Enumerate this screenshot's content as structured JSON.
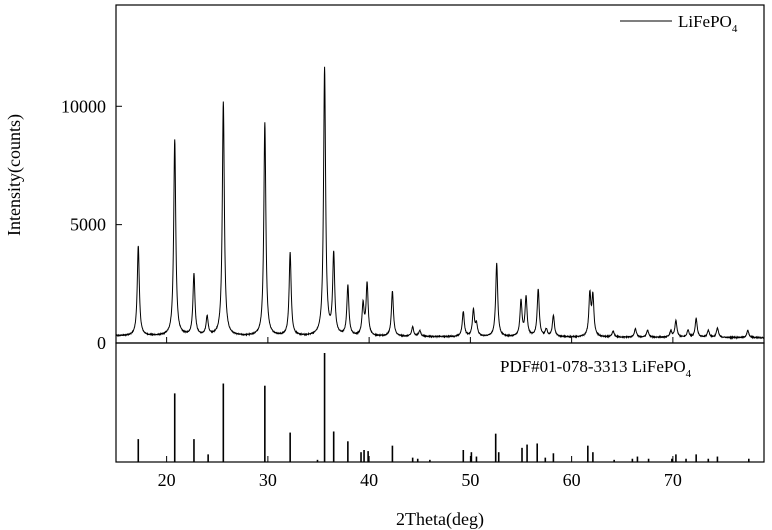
{
  "chart_data": {
    "type": "line",
    "xlabel": "2Theta(deg)",
    "ylabel": "Intensity(counts)",
    "xlim": [
      15,
      79
    ],
    "x_ticks": [
      20,
      30,
      40,
      50,
      60,
      70
    ],
    "y_ticks": [
      0,
      5000,
      10000
    ],
    "ylim": [
      0,
      12800
    ],
    "grid": false,
    "legend": {
      "position": "top-right",
      "label_main": "LiFePO",
      "label_sub": "4"
    },
    "reference_label": {
      "main": "PDF#01-078-3313 LiFePO",
      "sub": "4"
    },
    "colors": {
      "line": "#000000",
      "legend_line": "#555555"
    },
    "baseline": 300,
    "peak_width": 0.12,
    "series": [
      {
        "name": "LiFePO4",
        "peaks": [
          [
            17.2,
            3800
          ],
          [
            20.8,
            8300
          ],
          [
            22.7,
            2600
          ],
          [
            24.0,
            800
          ],
          [
            25.6,
            9900
          ],
          [
            29.7,
            9000
          ],
          [
            32.2,
            3500
          ],
          [
            35.6,
            11300
          ],
          [
            36.5,
            3400
          ],
          [
            37.9,
            2100
          ],
          [
            39.4,
            1300
          ],
          [
            39.8,
            2200
          ],
          [
            42.3,
            1900
          ],
          [
            44.3,
            400
          ],
          [
            45.0,
            250
          ],
          [
            49.3,
            1050
          ],
          [
            50.3,
            1100
          ],
          [
            50.6,
            500
          ],
          [
            52.6,
            3100
          ],
          [
            55.0,
            1500
          ],
          [
            55.5,
            1650
          ],
          [
            56.7,
            2000
          ],
          [
            57.5,
            300
          ],
          [
            58.2,
            900
          ],
          [
            61.8,
            1750
          ],
          [
            62.1,
            1650
          ],
          [
            64.1,
            250
          ],
          [
            66.3,
            350
          ],
          [
            67.5,
            300
          ],
          [
            69.8,
            250
          ],
          [
            70.3,
            700
          ],
          [
            71.5,
            300
          ],
          [
            72.3,
            800
          ],
          [
            73.5,
            300
          ],
          [
            74.4,
            400
          ],
          [
            77.4,
            300
          ]
        ]
      }
    ],
    "reference_sticks": [
      [
        17.2,
        0.21
      ],
      [
        20.8,
        0.63
      ],
      [
        22.7,
        0.21
      ],
      [
        24.1,
        0.07
      ],
      [
        25.6,
        0.72
      ],
      [
        29.7,
        0.7
      ],
      [
        32.2,
        0.27
      ],
      [
        34.9,
        0.02
      ],
      [
        35.6,
        1.0
      ],
      [
        36.5,
        0.28
      ],
      [
        37.9,
        0.19
      ],
      [
        39.2,
        0.09
      ],
      [
        39.5,
        0.11
      ],
      [
        39.9,
        0.1
      ],
      [
        42.3,
        0.15
      ],
      [
        44.3,
        0.04
      ],
      [
        44.8,
        0.03
      ],
      [
        46.0,
        0.02
      ],
      [
        49.3,
        0.11
      ],
      [
        50.1,
        0.09
      ],
      [
        50.6,
        0.05
      ],
      [
        52.5,
        0.26
      ],
      [
        52.8,
        0.09
      ],
      [
        55.1,
        0.13
      ],
      [
        55.6,
        0.16
      ],
      [
        56.6,
        0.17
      ],
      [
        57.4,
        0.04
      ],
      [
        58.2,
        0.08
      ],
      [
        61.6,
        0.15
      ],
      [
        62.1,
        0.09
      ],
      [
        64.2,
        0.02
      ],
      [
        66.0,
        0.03
      ],
      [
        66.5,
        0.05
      ],
      [
        67.6,
        0.03
      ],
      [
        69.9,
        0.03
      ],
      [
        70.3,
        0.07
      ],
      [
        71.3,
        0.03
      ],
      [
        72.3,
        0.07
      ],
      [
        73.5,
        0.03
      ],
      [
        74.4,
        0.05
      ],
      [
        77.5,
        0.03
      ]
    ]
  }
}
